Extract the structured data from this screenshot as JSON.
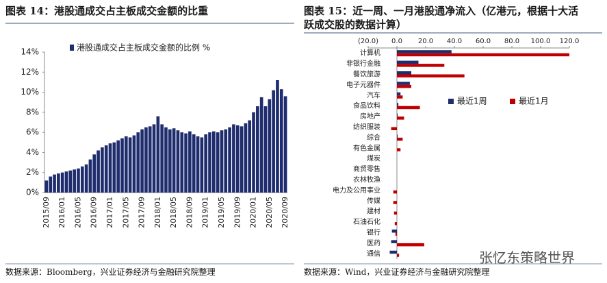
{
  "chart_data": [
    {
      "type": "bar",
      "title": "图表 14：港股通成交占主板成交金额的比重",
      "source": "数据来源：Bloomberg，兴业证券经济与金融研究院整理",
      "categories": [
        "2015/09",
        null,
        null,
        null,
        "2016/01",
        null,
        null,
        null,
        "2016/05",
        null,
        null,
        null,
        "2016/09",
        null,
        null,
        null,
        "2017/01",
        null,
        null,
        null,
        "2017/05",
        null,
        null,
        null,
        "2017/09",
        null,
        null,
        null,
        "2018/01",
        null,
        null,
        null,
        "2018/05",
        null,
        null,
        null,
        "2018/09",
        null,
        null,
        null,
        "2019/01",
        null,
        null,
        null,
        "2019/05",
        null,
        null,
        null,
        "2019/09",
        null,
        null,
        null,
        "2020/01",
        null,
        null,
        null,
        "2020/05",
        null,
        null,
        null,
        "2020/09"
      ],
      "series": [
        {
          "name": "港股通成交占主板成交金额的比例 %",
          "color": "#1f2d6e",
          "values": [
            1.2,
            1.6,
            1.8,
            1.9,
            2.0,
            2.1,
            2.2,
            2.3,
            2.4,
            2.6,
            2.8,
            3.3,
            3.8,
            4.2,
            4.5,
            4.7,
            4.9,
            5.0,
            5.2,
            5.4,
            5.6,
            5.5,
            5.7,
            6.0,
            6.3,
            6.5,
            6.6,
            6.8,
            7.6,
            6.8,
            6.5,
            6.3,
            6.4,
            6.2,
            6.0,
            5.9,
            6.1,
            5.8,
            5.6,
            5.5,
            5.8,
            6.0,
            6.1,
            6.0,
            6.2,
            6.3,
            6.5,
            6.8,
            6.7,
            6.6,
            6.9,
            7.2,
            8.0,
            8.6,
            9.5,
            8.6,
            9.3,
            10.2,
            11.2,
            10.3,
            9.6
          ]
        }
      ],
      "ylim": [
        0,
        14
      ],
      "yticks": [
        {
          "value": 0,
          "label": "0%"
        },
        {
          "value": 2,
          "label": "2%"
        },
        {
          "value": 4,
          "label": "4%"
        },
        {
          "value": 6,
          "label": "6%"
        },
        {
          "value": 8,
          "label": "8%"
        },
        {
          "value": 10,
          "label": "10%"
        },
        {
          "value": 12,
          "label": "12%"
        },
        {
          "value": 14,
          "label": "14%"
        }
      ]
    },
    {
      "type": "barh",
      "title": "图表 15：近一周、一月港股通净流入（亿港元，根据十大活跃成交股的数据计算）",
      "source": "数据来源：Wind，兴业证券经济与金融研究院整理",
      "categories": [
        "计算机",
        "非银行金融",
        "餐饮旅游",
        "电子元器件",
        "汽车",
        "食品饮料",
        "房地产",
        "纺织服装",
        "综合",
        "有色金属",
        "煤炭",
        "商贸零售",
        "农林牧渔",
        "电力及公用事业",
        "传媒",
        "建材",
        "石油石化",
        "银行",
        "医药",
        "通信"
      ],
      "series": [
        {
          "name": "最近1周",
          "color": "#1f2d6e",
          "values": [
            38,
            15,
            10,
            9,
            2.5,
            1,
            0.5,
            0,
            0.5,
            0,
            0,
            0,
            0,
            0,
            0,
            0,
            0,
            -3.5,
            -4,
            -5
          ]
        },
        {
          "name": "最近1月",
          "color": "#c00000",
          "values": [
            120,
            33,
            47,
            10,
            4,
            16,
            5,
            -4,
            4,
            2.5,
            0,
            0,
            0,
            -2.5,
            -2.5,
            -2,
            -1.5,
            -1,
            19,
            1.5
          ]
        }
      ],
      "xlim": [
        -20,
        120
      ],
      "xticks": [
        {
          "value": -20,
          "label": "(20.0)"
        },
        {
          "value": 0,
          "label": "0.0"
        },
        {
          "value": 20,
          "label": "20.0"
        },
        {
          "value": 40,
          "label": "40.0"
        },
        {
          "value": 60,
          "label": "60.0"
        },
        {
          "value": 80,
          "label": "80.0"
        },
        {
          "value": 100,
          "label": "100.0"
        },
        {
          "value": 120,
          "label": "120.0"
        }
      ],
      "legend": "right"
    }
  ],
  "watermark": "张忆东策略世界"
}
